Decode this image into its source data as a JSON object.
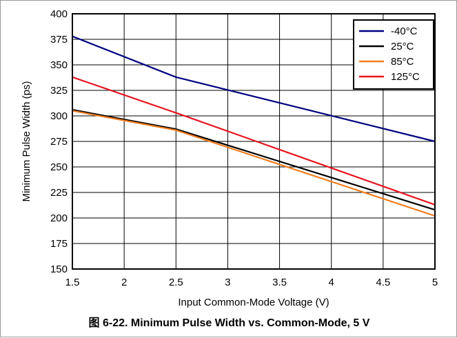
{
  "caption": "图 6-22. Minimum Pulse Width vs. Common-Mode, 5 V",
  "chart_data": {
    "type": "line",
    "xlabel": "Input Common-Mode Voltage (V)",
    "ylabel": "Minimum Pulse Width (ps)",
    "xlim": [
      1.5,
      5
    ],
    "ylim": [
      150,
      400
    ],
    "xticks": [
      1.5,
      2,
      2.5,
      3,
      3.5,
      4,
      4.5,
      5
    ],
    "xtick_labels": [
      "1.5",
      "2",
      "2.5",
      "3",
      "3.5",
      "4",
      "4.5",
      "5"
    ],
    "yticks": [
      150,
      175,
      200,
      225,
      250,
      275,
      300,
      325,
      350,
      375,
      400
    ],
    "ytick_labels": [
      "150",
      "175",
      "200",
      "225",
      "250",
      "275",
      "300",
      "325",
      "350",
      "375",
      "400"
    ],
    "grid": true,
    "legend_position": "top-right",
    "x": [
      1.5,
      2.5,
      5
    ],
    "series": [
      {
        "name": "-40°C",
        "color": "#000080",
        "values": [
          378,
          338,
          275
        ]
      },
      {
        "name": "25°C",
        "color": "#000000",
        "values": [
          306,
          287,
          208
        ]
      },
      {
        "name": "85°C",
        "color": "#f07d1e",
        "values": [
          305,
          286,
          202
        ]
      },
      {
        "name": "125°C",
        "color": "#e8141e",
        "values": [
          338,
          303,
          213
        ]
      }
    ]
  }
}
